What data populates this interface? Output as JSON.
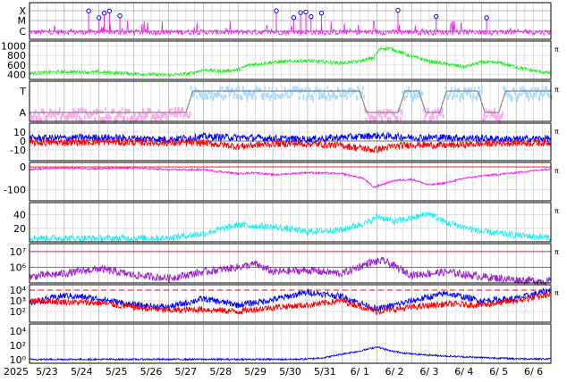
{
  "chart_data": {
    "type": "line",
    "year_label": "2025",
    "x_tick_labels": [
      "5/23",
      "5/24",
      "5/25",
      "5/26",
      "5/27",
      "5/28",
      "5/29",
      "5/30",
      "5/31",
      "6/ 1",
      "6/ 2",
      "6/ 3",
      "6/ 4",
      "6/ 5",
      "6/ 6"
    ],
    "x_range_days": [
      0,
      15
    ],
    "colors": {
      "grid": "#cccccc",
      "axis": "#000000",
      "magenta": "#ee22ee",
      "green": "#22ee22",
      "lightblue": "#aaddff",
      "pink": "#ffaaee",
      "gray": "#888888",
      "blue": "#0000ff",
      "red": "#ff0000",
      "cyan": "#22eeee",
      "purple": "#9922cc"
    },
    "panels": [
      {
        "id": "xray-class",
        "ylabels": [
          "X",
          "M",
          "C"
        ],
        "flare_events_day": [
          1.7,
          2.0,
          2.15,
          2.3,
          2.6,
          7.1,
          7.6,
          7.8,
          7.95,
          8.1,
          8.4,
          10.6,
          11.7,
          13.15
        ],
        "series": [
          {
            "color_key": "magenta",
            "baseline": "C"
          }
        ]
      },
      {
        "id": "solar-wind-speed",
        "yticks": [
          400,
          600,
          800,
          1000
        ],
        "ylim": [
          300,
          1100
        ],
        "series": [
          {
            "color_key": "green",
            "knots": [
              [
                0,
                430
              ],
              [
                1,
                460
              ],
              [
                2,
                450
              ],
              [
                3,
                420
              ],
              [
                4,
                390
              ],
              [
                4.6,
                420
              ],
              [
                5.0,
                500
              ],
              [
                5.5,
                470
              ],
              [
                6.0,
                500
              ],
              [
                6.3,
                600
              ],
              [
                7,
                660
              ],
              [
                8,
                690
              ],
              [
                9,
                640
              ],
              [
                9.5,
                680
              ],
              [
                9.9,
                750
              ],
              [
                10.1,
                950
              ],
              [
                10.4,
                940
              ],
              [
                11,
                780
              ],
              [
                11.5,
                680
              ],
              [
                12,
                620
              ],
              [
                12.5,
                560
              ],
              [
                13,
                660
              ],
              [
                13.5,
                650
              ],
              [
                14,
                560
              ],
              [
                14.5,
                480
              ],
              [
                15,
                430
              ]
            ]
          }
        ]
      },
      {
        "id": "imf-sector",
        "ylabels": [
          "T",
          "A"
        ],
        "series": [
          {
            "color_key": "gray",
            "knots": [
              [
                0,
                0
              ],
              [
                4.5,
                0
              ],
              [
                4.7,
                1
              ],
              [
                9.5,
                1
              ],
              [
                9.7,
                0
              ],
              [
                10.6,
                0
              ],
              [
                10.8,
                1
              ],
              [
                11.2,
                1
              ],
              [
                11.4,
                0
              ],
              [
                11.8,
                0
              ],
              [
                12,
                1
              ],
              [
                12.9,
                1
              ],
              [
                13.1,
                0
              ],
              [
                13.5,
                0
              ],
              [
                13.7,
                1
              ],
              [
                15,
                1
              ]
            ]
          }
        ]
      },
      {
        "id": "imf-components",
        "yticks": [
          10,
          0,
          -10
        ],
        "ylim": [
          -22,
          20
        ],
        "series": [
          {
            "color_key": "blue",
            "knots": [
              [
                0,
                3
              ],
              [
                2,
                4
              ],
              [
                4,
                2
              ],
              [
                5,
                5
              ],
              [
                6,
                4
              ],
              [
                7,
                3
              ],
              [
                8,
                2
              ],
              [
                9,
                4
              ],
              [
                10,
                6
              ],
              [
                11,
                4
              ],
              [
                12,
                4
              ],
              [
                13,
                3
              ],
              [
                14,
                2
              ],
              [
                15,
                3
              ]
            ]
          },
          {
            "color_key": "red",
            "knots": [
              [
                0,
                -2
              ],
              [
                2,
                -1
              ],
              [
                4,
                -2
              ],
              [
                5,
                -2
              ],
              [
                6,
                -6
              ],
              [
                7,
                -3
              ],
              [
                8,
                -3
              ],
              [
                9,
                -5
              ],
              [
                9.9,
                -10
              ],
              [
                10.5,
                -6
              ],
              [
                11,
                -4
              ],
              [
                12,
                -5
              ],
              [
                13,
                -3
              ],
              [
                14,
                -2
              ],
              [
                15,
                -2
              ]
            ]
          }
        ]
      },
      {
        "id": "dst-index",
        "yticks": [
          0,
          -100
        ],
        "ylim": [
          -150,
          20
        ],
        "series": [
          {
            "color_key": "magenta",
            "knots": [
              [
                0,
                -10
              ],
              [
                1,
                -5
              ],
              [
                2,
                -8
              ],
              [
                3,
                -5
              ],
              [
                4,
                -12
              ],
              [
                5,
                -12
              ],
              [
                6,
                -30
              ],
              [
                6.5,
                -25
              ],
              [
                7,
                -35
              ],
              [
                7.5,
                -30
              ],
              [
                8,
                -25
              ],
              [
                9,
                -30
              ],
              [
                9.6,
                -50
              ],
              [
                9.9,
                -90
              ],
              [
                10.5,
                -60
              ],
              [
                11,
                -55
              ],
              [
                11.5,
                -80
              ],
              [
                12,
                -70
              ],
              [
                12.5,
                -50
              ],
              [
                13,
                -40
              ],
              [
                14,
                -25
              ],
              [
                15,
                -8
              ]
            ]
          }
        ]
      },
      {
        "id": "plasma-temperature",
        "yticks": [
          20,
          40
        ],
        "ylim": [
          0,
          58
        ],
        "series": [
          {
            "color_key": "cyan",
            "knots": [
              [
                0,
                6
              ],
              [
                2,
                5
              ],
              [
                4,
                6
              ],
              [
                5,
                12
              ],
              [
                6,
                25
              ],
              [
                7,
                22
              ],
              [
                8,
                15
              ],
              [
                9,
                18
              ],
              [
                9.8,
                30
              ],
              [
                10,
                38
              ],
              [
                10.5,
                30
              ],
              [
                11,
                35
              ],
              [
                11.5,
                42
              ],
              [
                12,
                28
              ],
              [
                12.5,
                22
              ],
              [
                13,
                15
              ],
              [
                14,
                10
              ],
              [
                15,
                6
              ]
            ]
          }
        ]
      },
      {
        "id": "electron-flux",
        "yticks": [
          "10⁷",
          "10⁶"
        ],
        "log_ylim": [
          5,
          7.5
        ],
        "reference_lines": [
          7,
          6
        ],
        "series": [
          {
            "color_key": "purple",
            "knots": [
              [
                0,
                5.4
              ],
              [
                1,
                5.6
              ],
              [
                2,
                5.9
              ],
              [
                3,
                5.5
              ],
              [
                4,
                5.3
              ],
              [
                5,
                5.7
              ],
              [
                6,
                6.0
              ],
              [
                6.5,
                6.2
              ],
              [
                7,
                5.7
              ],
              [
                8,
                5.8
              ],
              [
                9,
                5.6
              ],
              [
                9.8,
                6.3
              ],
              [
                10.2,
                6.4
              ],
              [
                11,
                5.5
              ],
              [
                12,
                5.7
              ],
              [
                13,
                5.4
              ],
              [
                14,
                5.2
              ],
              [
                15,
                5.1
              ]
            ]
          }
        ]
      },
      {
        "id": "proton-flux",
        "yticks": [
          "10⁴",
          "10³",
          "10²"
        ],
        "log_ylim": [
          1,
          4.5
        ],
        "dashed_line": 4,
        "series": [
          {
            "color_key": "blue",
            "knots": [
              [
                0,
                2.8
              ],
              [
                1,
                3.5
              ],
              [
                2,
                3.2
              ],
              [
                3,
                2.6
              ],
              [
                4,
                2.4
              ],
              [
                5,
                3.2
              ],
              [
                6,
                2.6
              ],
              [
                7,
                3.1
              ],
              [
                8,
                3.8
              ],
              [
                9,
                3.4
              ],
              [
                10,
                2.2
              ],
              [
                11,
                3.0
              ],
              [
                12,
                3.7
              ],
              [
                13,
                3.0
              ],
              [
                14,
                3.2
              ],
              [
                15,
                4.0
              ]
            ]
          },
          {
            "color_key": "red",
            "knots": [
              [
                0,
                3.0
              ],
              [
                1,
                2.9
              ],
              [
                2,
                2.8
              ],
              [
                3,
                2.4
              ],
              [
                4,
                2.1
              ],
              [
                5,
                2.2
              ],
              [
                6,
                2.0
              ],
              [
                7,
                2.4
              ],
              [
                8,
                2.6
              ],
              [
                9,
                3.0
              ],
              [
                10,
                2.0
              ],
              [
                11,
                2.4
              ],
              [
                12,
                2.7
              ],
              [
                13,
                2.6
              ],
              [
                14,
                3.0
              ],
              [
                15,
                3.6
              ]
            ]
          }
        ]
      },
      {
        "id": "aurora-index",
        "yticks": [
          "10⁴",
          "10²",
          "10⁰"
        ],
        "log_ylim": [
          -0.5,
          5
        ],
        "series": [
          {
            "color_key": "blue",
            "knots": [
              [
                0,
                0.05
              ],
              [
                7.5,
                0.05
              ],
              [
                8,
                0.1
              ],
              [
                8.5,
                0.3
              ],
              [
                9,
                0.8
              ],
              [
                9.5,
                1.2
              ],
              [
                10,
                1.8
              ],
              [
                10.4,
                1.2
              ],
              [
                11,
                0.8
              ],
              [
                12,
                0.5
              ],
              [
                13,
                0.3
              ],
              [
                14,
                0.15
              ],
              [
                15,
                0.1
              ]
            ]
          }
        ]
      }
    ]
  }
}
